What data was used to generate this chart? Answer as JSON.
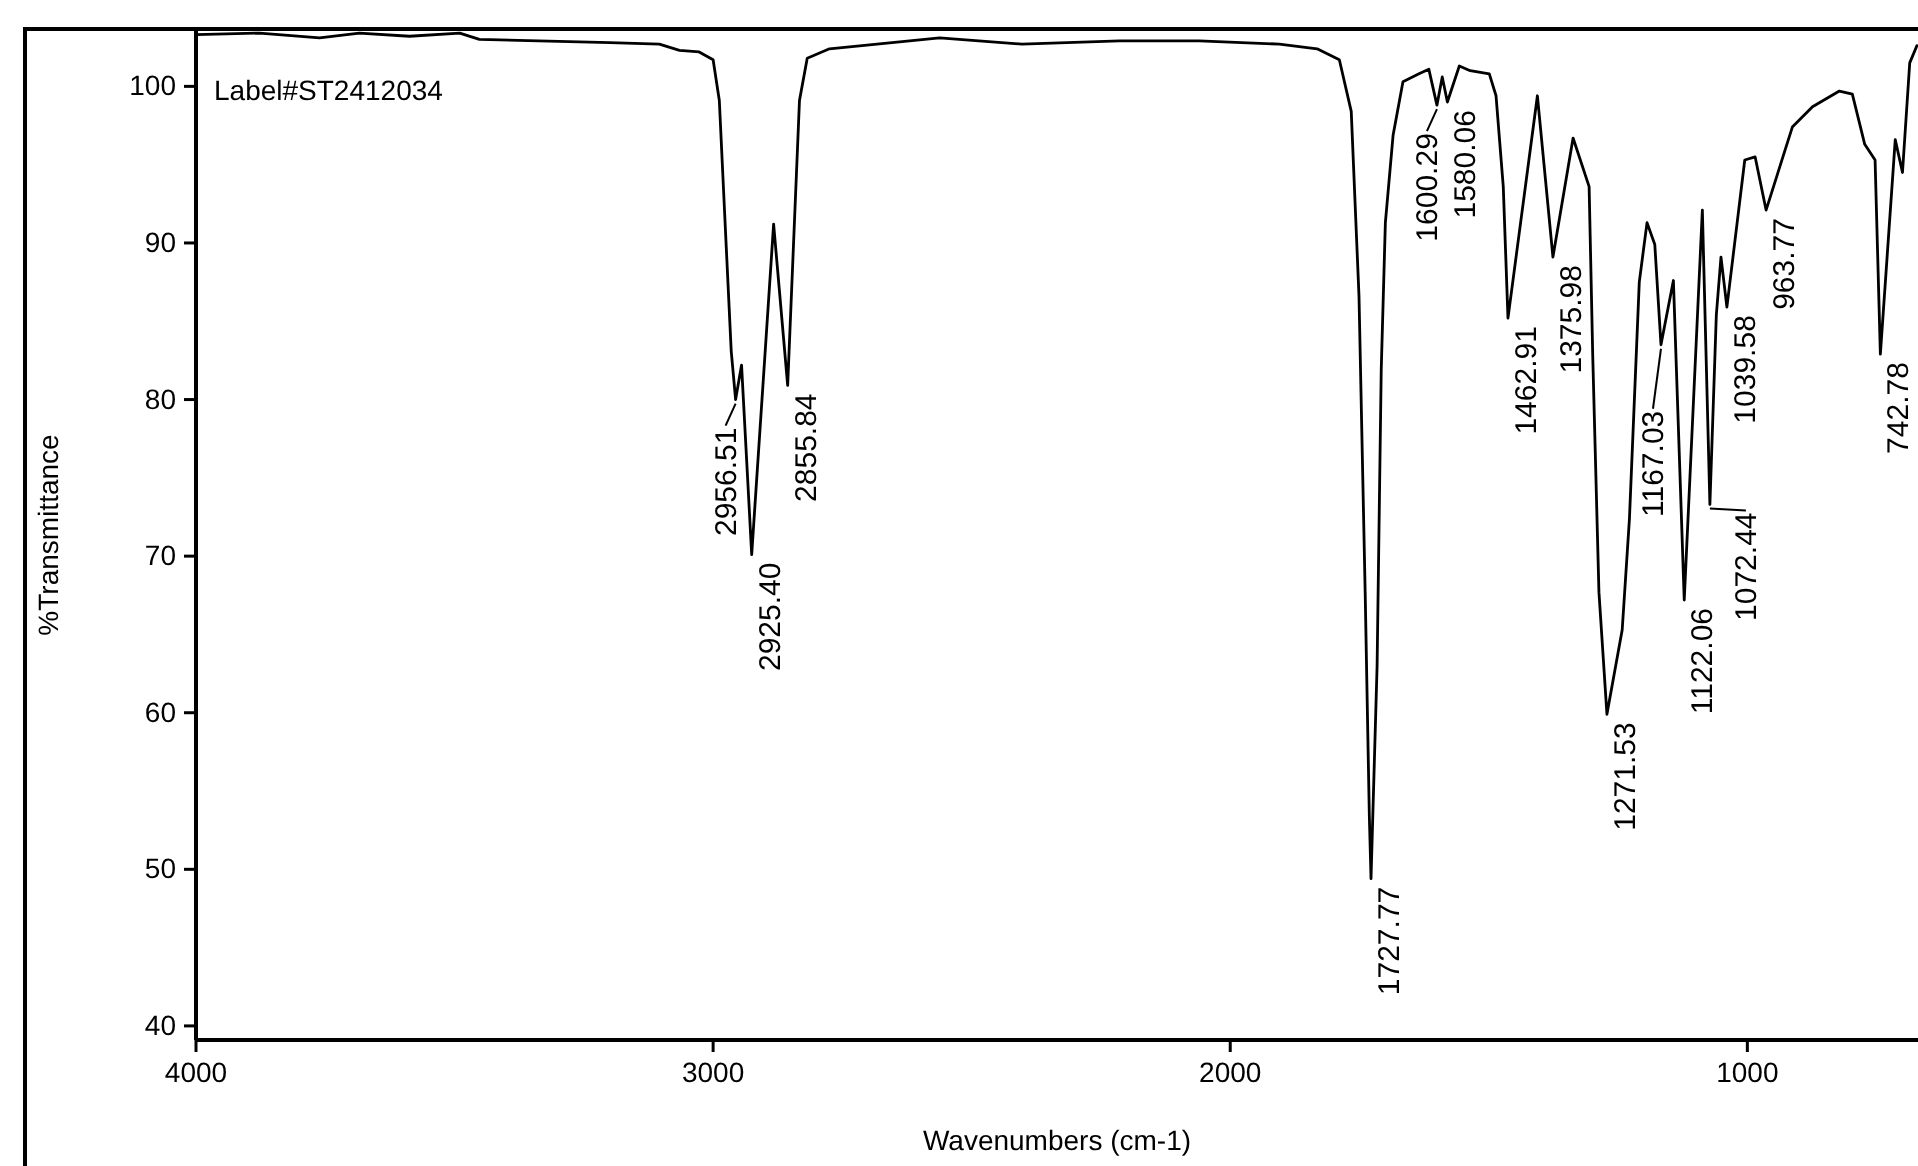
{
  "chart_data": {
    "type": "line",
    "xlabel": "Wavenumbers (cm-1)",
    "ylabel": "%Transmittance",
    "x": [
      4000,
      3877,
      3761,
      3684,
      3587,
      3490,
      3452,
      3200,
      3104,
      3065,
      3027,
      3000,
      2988,
      2977,
      2965,
      2956.51,
      2945,
      2925.4,
      2883,
      2855.84,
      2833,
      2818,
      2775,
      2562,
      2403,
      2214,
      2060,
      1905,
      1832,
      1789,
      1766,
      1751,
      1739,
      1731,
      1727.77,
      1716,
      1708,
      1700,
      1685,
      1666,
      1635,
      1616,
      1600.29,
      1590,
      1580.06,
      1557,
      1536,
      1499,
      1486,
      1472,
      1462.91,
      1406,
      1375.98,
      1337,
      1306,
      1299,
      1287,
      1271.53,
      1242,
      1228,
      1209,
      1194,
      1179,
      1167.03,
      1143,
      1122.06,
      1087,
      1072.44,
      1060,
      1051,
      1039.58,
      1005,
      985,
      963.77,
      913,
      874,
      822,
      797,
      773,
      753,
      742.78,
      714,
      700,
      686,
      672
    ],
    "values": [
      103.3,
      103.4,
      103.1,
      103.4,
      103.2,
      103.4,
      103.0,
      102.8,
      102.7,
      102.3,
      102.2,
      101.7,
      99.1,
      91.4,
      83.1,
      80.0,
      82.2,
      70.1,
      91.2,
      80.9,
      99.1,
      101.8,
      102.4,
      103.1,
      102.7,
      102.9,
      102.9,
      102.7,
      102.4,
      101.7,
      98.4,
      86.6,
      67.6,
      53.4,
      49.4,
      63.0,
      81.9,
      91.3,
      96.9,
      100.3,
      100.8,
      101.1,
      98.8,
      100.6,
      99.0,
      101.3,
      101.0,
      100.8,
      99.4,
      93.6,
      85.2,
      99.4,
      89.1,
      96.7,
      93.6,
      82.8,
      67.7,
      59.9,
      65.3,
      72.4,
      87.5,
      91.3,
      89.9,
      83.5,
      87.6,
      67.2,
      92.1,
      73.3,
      85.4,
      89.1,
      85.9,
      95.3,
      95.5,
      92.1,
      97.4,
      98.7,
      99.7,
      99.5,
      96.3,
      95.3,
      82.9,
      96.6,
      94.5,
      101.5,
      102.6
    ],
    "color": "#000000",
    "marker": "none",
    "line_style": "solid",
    "grid": false,
    "xlim": [
      4000,
      670
    ],
    "ylim": [
      39.1,
      103.6
    ],
    "xticks": [
      4000,
      3000,
      2000,
      1000
    ],
    "yticks": [
      40,
      50,
      60,
      70,
      80,
      90,
      100
    ],
    "annotations": [
      "Label#ST2412034",
      {
        "text": "2956.51",
        "x": 2956.51,
        "y": 80.0
      },
      {
        "text": "2925.40",
        "x": 2925.4,
        "y": 70.1
      },
      {
        "text": "2855.84",
        "x": 2855.84,
        "y": 80.9
      },
      {
        "text": "1727.77",
        "x": 1727.77,
        "y": 49.4
      },
      {
        "text": "1600.29",
        "x": 1600.29,
        "y": 98.8
      },
      {
        "text": "1580.06",
        "x": 1580.06,
        "y": 99.0
      },
      {
        "text": "1462.91",
        "x": 1462.91,
        "y": 85.2
      },
      {
        "text": "1375.98",
        "x": 1375.98,
        "y": 89.1
      },
      {
        "text": "1271.53",
        "x": 1271.53,
        "y": 59.9
      },
      {
        "text": "1167.03",
        "x": 1167.03,
        "y": 83.5
      },
      {
        "text": "1122.06",
        "x": 1122.06,
        "y": 67.2
      },
      {
        "text": "1072.44",
        "x": 1072.44,
        "y": 73.3
      },
      {
        "text": "1039.58",
        "x": 1039.58,
        "y": 85.9
      },
      {
        "text": "963.77",
        "x": 963.77,
        "y": 92.1
      },
      {
        "text": "742.78",
        "x": 742.78,
        "y": 82.9
      }
    ]
  }
}
